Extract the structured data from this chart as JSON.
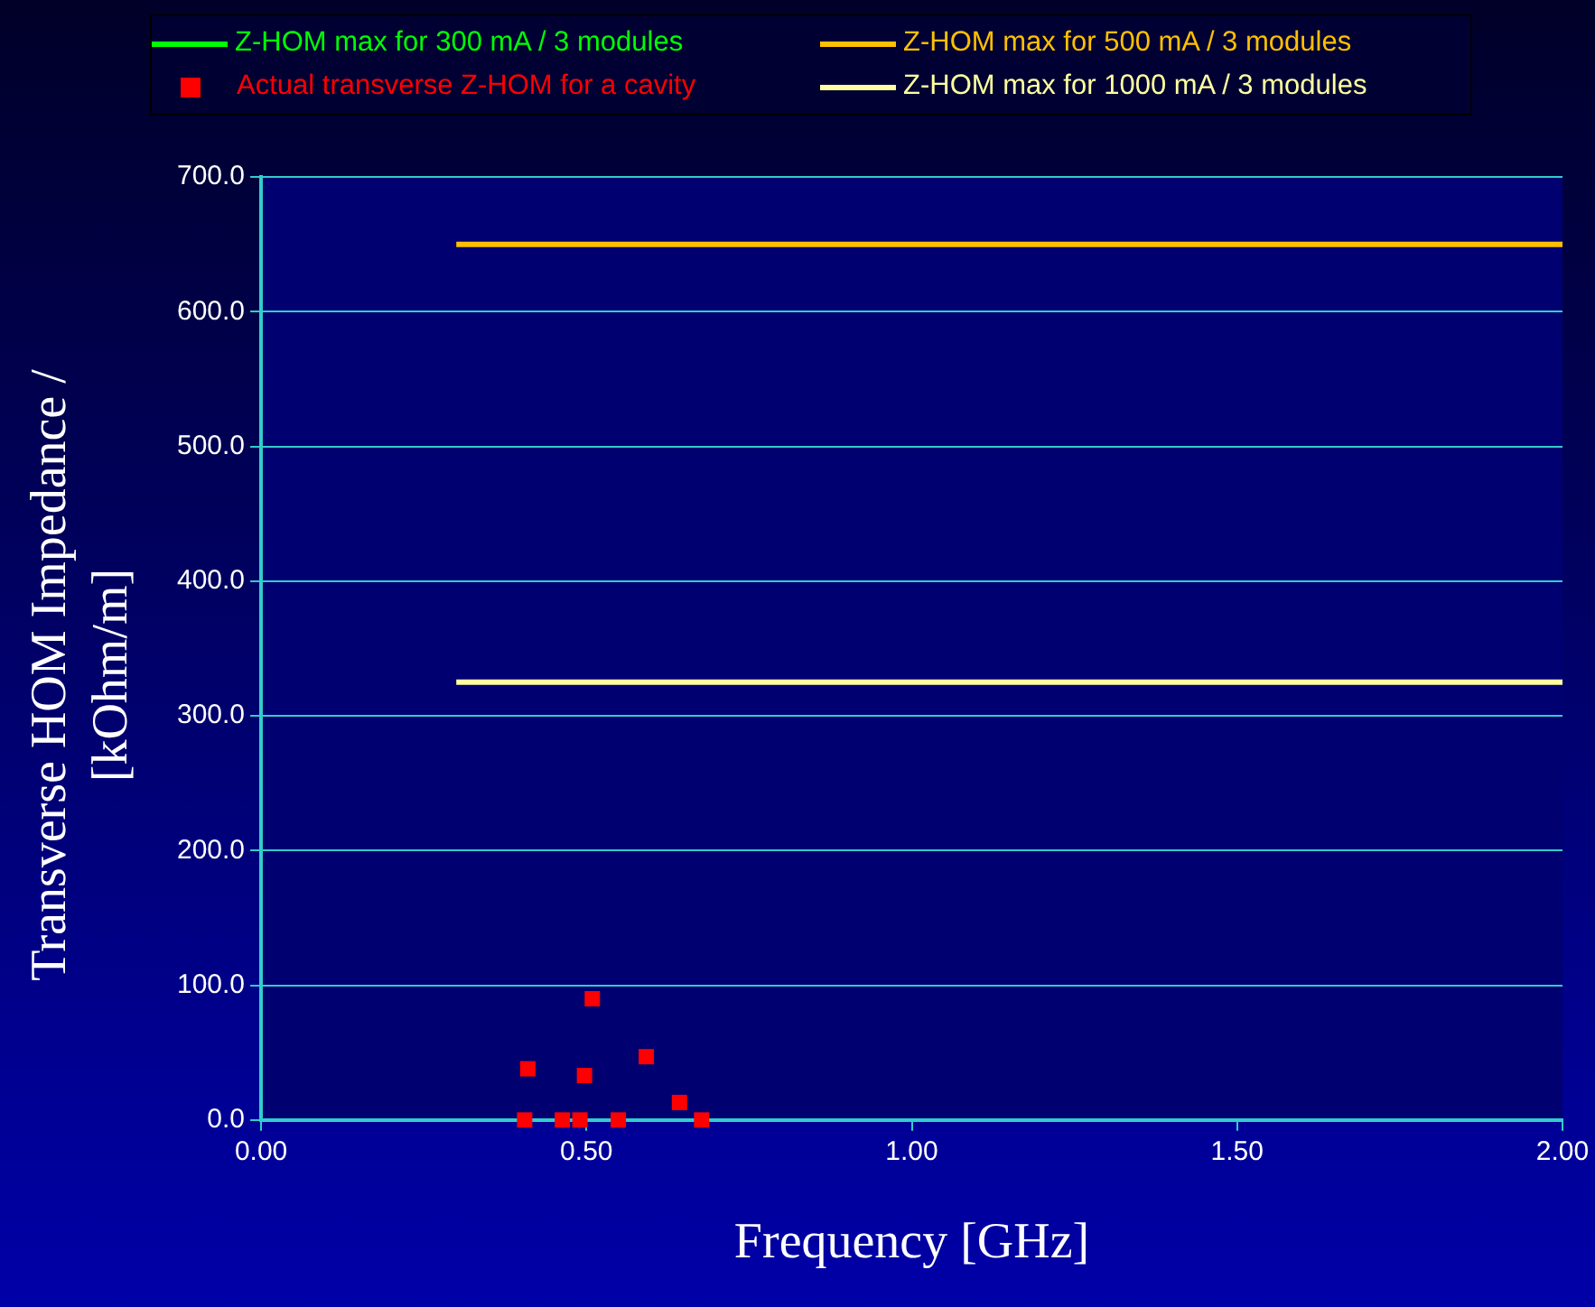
{
  "chart_data": {
    "type": "scatter",
    "xlabel": "Frequency [GHz]",
    "ylabel": "Transverse HOM Impedance / [kOhm/m]",
    "xlim": [
      0,
      2
    ],
    "xticks": [
      {
        "value": 0,
        "label": "0.00"
      },
      {
        "value": 0.5,
        "label": "0.50"
      },
      {
        "value": 1,
        "label": "1.00"
      },
      {
        "value": 1.5,
        "label": "1.50"
      },
      {
        "value": 2,
        "label": "2.00"
      }
    ],
    "ylim": [
      0,
      700
    ],
    "yticks": [
      {
        "value": 0,
        "label": "0.0"
      },
      {
        "value": 100,
        "label": "100.0"
      },
      {
        "value": 200,
        "label": "200.0"
      },
      {
        "value": 300,
        "label": "300.0"
      },
      {
        "value": 400,
        "label": "400.0"
      },
      {
        "value": 500,
        "label": "500.0"
      },
      {
        "value": 600,
        "label": "600.0"
      },
      {
        "value": 700,
        "label": "700.0"
      }
    ],
    "grid": "y",
    "legend": "top",
    "series": [
      {
        "name": "Z-HOM max for 300 mA / 3 modules",
        "type": "line",
        "marker": "none",
        "color": "#00ff00"
      },
      {
        "name": "Z-HOM max for 500 mA / 3 modules",
        "type": "line",
        "marker": "none",
        "color": "#ffc000",
        "x": [
          0.3,
          2.0
        ],
        "values": [
          650,
          650
        ]
      },
      {
        "name": "Actual transverse Z-HOM for a cavity",
        "marker": "square",
        "color": "#ff0000",
        "x": [
          0.405,
          0.41,
          0.463,
          0.49,
          0.497,
          0.509,
          0.549,
          0.592,
          0.643,
          0.677
        ],
        "values": [
          0,
          38,
          0,
          0,
          33,
          90,
          0,
          47,
          13,
          0
        ]
      },
      {
        "name": "Z-HOM max for 1000 mA / 3 modules",
        "type": "line",
        "marker": "none",
        "color": "#ffffa0",
        "x": [
          0.3,
          2.0
        ],
        "values": [
          325,
          325
        ]
      }
    ]
  }
}
